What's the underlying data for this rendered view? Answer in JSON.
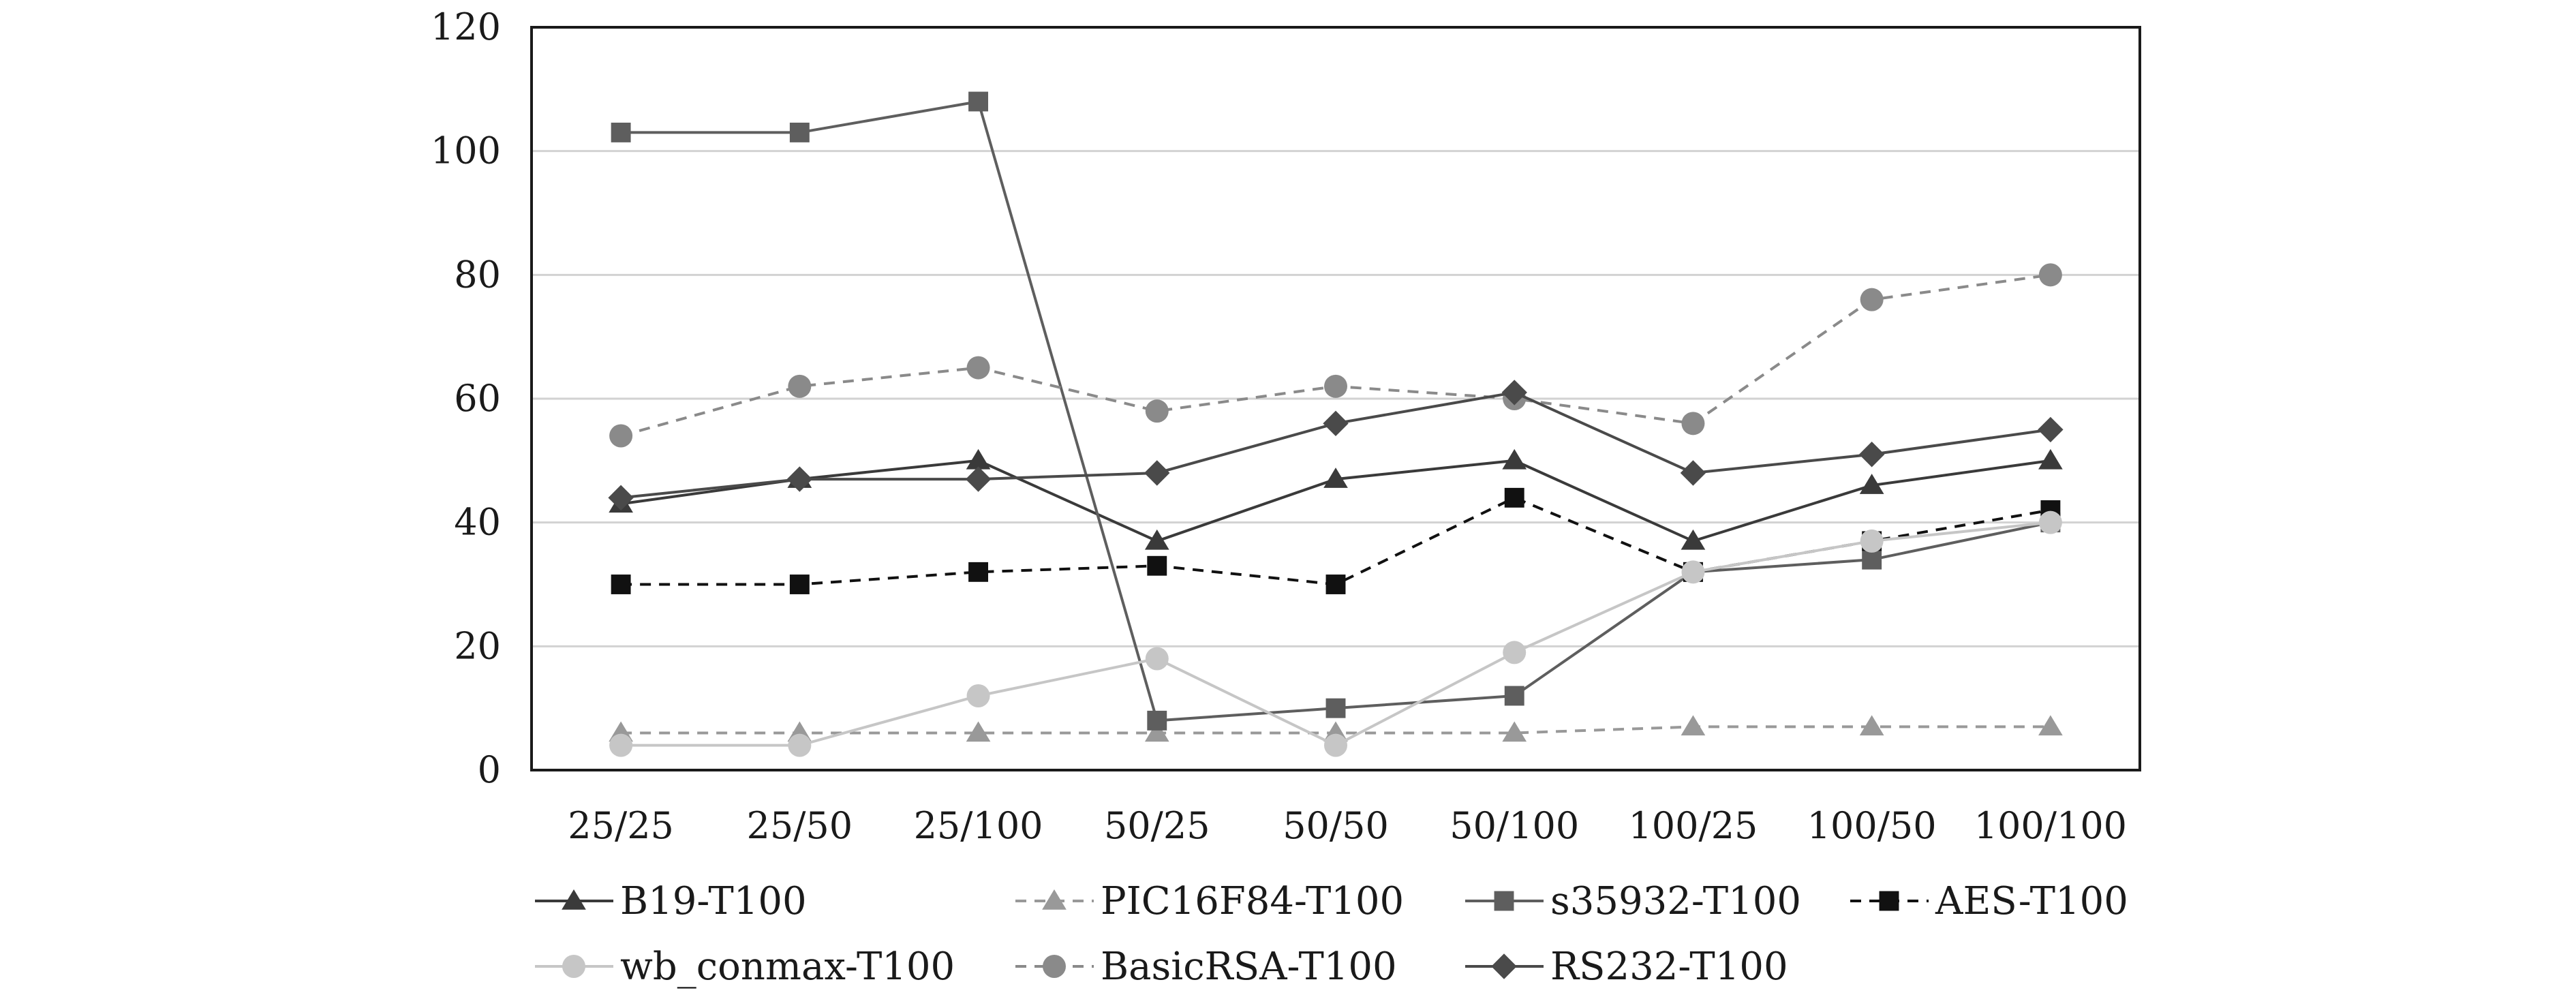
{
  "chart_data": {
    "type": "line",
    "categories": [
      "25/25",
      "25/50",
      "25/100",
      "50/25",
      "50/50",
      "50/100",
      "100/25",
      "100/50",
      "100/100"
    ],
    "ylim": [
      0,
      120
    ],
    "yticks": [
      0,
      20,
      40,
      60,
      80,
      100,
      120
    ],
    "grid": true,
    "legend_position": "bottom",
    "series": [
      {
        "name": "B19-T100",
        "values": [
          43,
          47,
          50,
          37,
          47,
          50,
          37,
          46,
          50
        ],
        "color": "#3a3a3a",
        "marker": "triangle",
        "dash": "solid"
      },
      {
        "name": "PIC16F84-T100",
        "values": [
          6,
          6,
          6,
          6,
          6,
          6,
          7,
          7,
          7
        ],
        "color": "#999999",
        "marker": "triangle",
        "dash": "dashed"
      },
      {
        "name": "s35932-T100",
        "values": [
          103,
          103,
          108,
          8,
          10,
          12,
          32,
          34,
          40
        ],
        "color": "#5e5e5e",
        "marker": "square",
        "dash": "solid"
      },
      {
        "name": "AES-T100",
        "values": [
          30,
          30,
          32,
          33,
          30,
          44,
          32,
          37,
          42
        ],
        "color": "#111111",
        "marker": "square",
        "dash": "dashed"
      },
      {
        "name": "wb_conmax-T100",
        "values": [
          4,
          4,
          12,
          18,
          4,
          19,
          32,
          37,
          40
        ],
        "color": "#c6c6c6",
        "marker": "circle",
        "dash": "solid"
      },
      {
        "name": "BasicRSA-T100",
        "values": [
          54,
          62,
          65,
          58,
          62,
          60,
          56,
          76,
          80
        ],
        "color": "#8a8a8a",
        "marker": "circle",
        "dash": "dashed"
      },
      {
        "name": "RS232-T100",
        "values": [
          44,
          47,
          47,
          48,
          56,
          61,
          48,
          51,
          55
        ],
        "color": "#4a4a4a",
        "marker": "diamond",
        "dash": "solid"
      }
    ]
  }
}
